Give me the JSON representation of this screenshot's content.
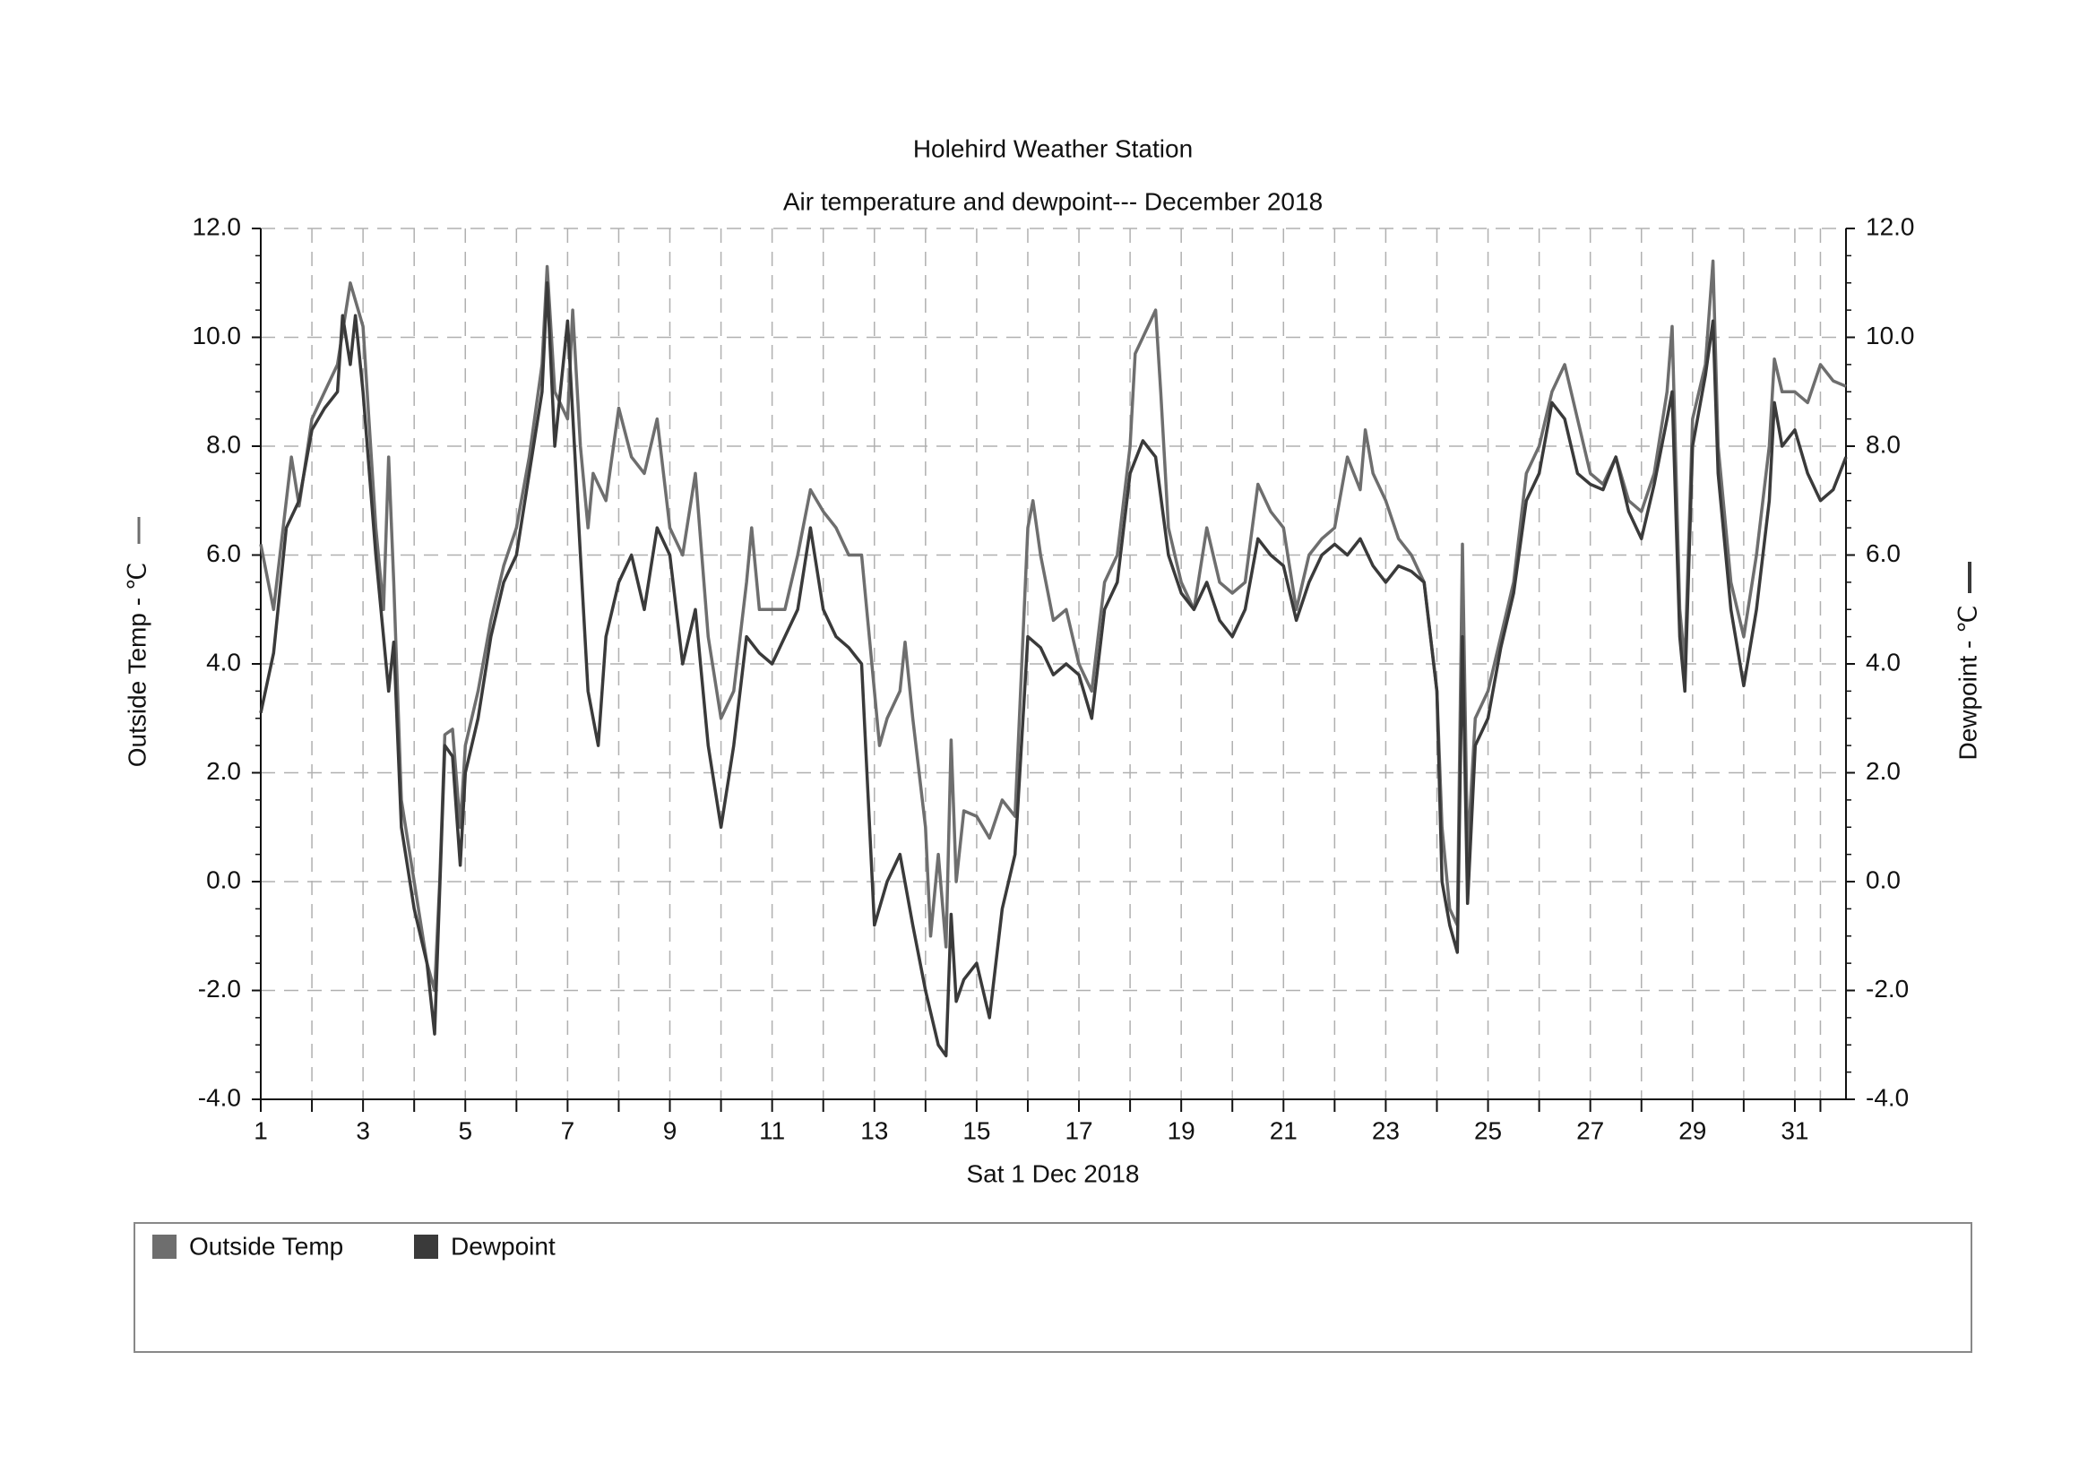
{
  "chart_data": {
    "type": "line",
    "title": "Holehird Weather Station",
    "subtitle": "Air temperature and dewpoint--- December 2018",
    "x_label": "Sat 1 Dec 2018",
    "y_label": "Outside Temp - ℃",
    "y2_label": "Dewpoint - ℃",
    "xlim": [
      1,
      32
    ],
    "xticks": [
      1,
      3,
      5,
      7,
      9,
      11,
      13,
      15,
      17,
      19,
      21,
      23,
      25,
      27,
      29,
      31
    ],
    "ylim": [
      -4,
      12
    ],
    "yticks": [
      {
        "value": -4,
        "label": "-4.0"
      },
      {
        "value": -2,
        "label": "-2.0"
      },
      {
        "value": 0,
        "label": "0.0"
      },
      {
        "value": 2,
        "label": "2.0"
      },
      {
        "value": 4,
        "label": "4.0"
      },
      {
        "value": 6,
        "label": "6.0"
      },
      {
        "value": 8,
        "label": "8.0"
      },
      {
        "value": 10,
        "label": "10.0"
      },
      {
        "value": 12,
        "label": "12.0"
      }
    ],
    "y2lim": [
      -4,
      12
    ],
    "y2ticks": [
      {
        "value": -4,
        "label": "-4.0"
      },
      {
        "value": -2,
        "label": "-2.0"
      },
      {
        "value": 0,
        "label": "0.0"
      },
      {
        "value": 2,
        "label": "2.0"
      },
      {
        "value": 4,
        "label": "4.0"
      },
      {
        "value": 6,
        "label": "6.0"
      },
      {
        "value": 8,
        "label": "8.0"
      },
      {
        "value": 10,
        "label": "10.0"
      },
      {
        "value": 12,
        "label": "12.0"
      }
    ],
    "grid": true,
    "series": [
      {
        "name": "Outside Temp",
        "color": "#6e6e6e",
        "x": [
          1,
          1.25,
          1.5,
          1.6,
          1.75,
          2,
          2.25,
          2.5,
          2.75,
          3,
          3.25,
          3.4,
          3.5,
          3.6,
          3.75,
          4,
          4.25,
          4.4,
          4.5,
          4.6,
          4.75,
          4.9,
          5,
          5.25,
          5.5,
          5.75,
          6,
          6.25,
          6.5,
          6.6,
          6.75,
          7,
          7.1,
          7.25,
          7.4,
          7.5,
          7.75,
          8,
          8.25,
          8.5,
          8.75,
          9,
          9.25,
          9.5,
          9.75,
          10,
          10.25,
          10.5,
          10.6,
          10.75,
          11,
          11.25,
          11.5,
          11.75,
          12,
          12.25,
          12.5,
          12.75,
          13,
          13.1,
          13.25,
          13.5,
          13.6,
          13.75,
          14,
          14.1,
          14.25,
          14.4,
          14.5,
          14.6,
          14.75,
          15,
          15.25,
          15.5,
          15.75,
          16,
          16.1,
          16.25,
          16.5,
          16.75,
          17,
          17.25,
          17.5,
          17.75,
          18,
          18.1,
          18.25,
          18.5,
          18.6,
          18.75,
          19,
          19.25,
          19.5,
          19.75,
          20,
          20.25,
          20.5,
          20.75,
          21,
          21.25,
          21.5,
          21.75,
          22,
          22.25,
          22.5,
          22.6,
          22.75,
          23,
          23.25,
          23.5,
          23.75,
          24,
          24.1,
          24.25,
          24.4,
          24.5,
          24.6,
          24.75,
          25,
          25.25,
          25.5,
          25.75,
          26,
          26.25,
          26.5,
          26.75,
          27,
          27.25,
          27.5,
          27.75,
          28,
          28.25,
          28.5,
          28.6,
          28.75,
          28.85,
          29,
          29.25,
          29.4,
          29.5,
          29.75,
          30,
          30.25,
          30.5,
          30.6,
          30.75,
          31,
          31.25,
          31.5,
          31.75,
          32
        ],
        "values": [
          6.2,
          5.0,
          7.0,
          7.8,
          6.9,
          8.5,
          9.0,
          9.5,
          11.0,
          10.2,
          6.5,
          5.0,
          7.8,
          5.5,
          1.5,
          0.0,
          -1.5,
          -2.0,
          0.0,
          2.7,
          2.8,
          1.0,
          2.5,
          3.5,
          4.8,
          5.8,
          6.5,
          7.8,
          9.5,
          11.3,
          9.0,
          8.5,
          10.5,
          8.0,
          6.5,
          7.5,
          7.0,
          8.7,
          7.8,
          7.5,
          8.5,
          6.5,
          6.0,
          7.5,
          4.5,
          3.0,
          3.5,
          5.5,
          6.5,
          5.0,
          5.0,
          5.0,
          6.0,
          7.2,
          6.8,
          6.5,
          6.0,
          6.0,
          3.5,
          2.5,
          3.0,
          3.5,
          4.4,
          3.0,
          1.0,
          -1.0,
          0.5,
          -1.2,
          2.6,
          0.0,
          1.3,
          1.2,
          0.8,
          1.5,
          1.2,
          6.5,
          7.0,
          6.0,
          4.8,
          5.0,
          4.0,
          3.5,
          5.5,
          6.0,
          8.0,
          9.7,
          10.0,
          10.5,
          9.0,
          6.5,
          5.5,
          5.0,
          6.5,
          5.5,
          5.3,
          5.5,
          7.3,
          6.8,
          6.5,
          5.0,
          6.0,
          6.3,
          6.5,
          7.8,
          7.2,
          8.3,
          7.5,
          7.0,
          6.3,
          6.0,
          5.5,
          3.5,
          1.0,
          -0.5,
          -0.8,
          6.2,
          0.5,
          3.0,
          3.5,
          4.5,
          5.5,
          7.5,
          8.0,
          9.0,
          9.5,
          8.5,
          7.5,
          7.3,
          7.8,
          7.0,
          6.8,
          7.5,
          9.0,
          10.2,
          5.0,
          4.0,
          8.5,
          9.5,
          11.4,
          8.0,
          5.5,
          4.5,
          6.0,
          8.0,
          9.6,
          9.0,
          9.0,
          8.8,
          9.5,
          9.2,
          9.1
        ]
      },
      {
        "name": "Dewpoint",
        "color": "#3a3a3a",
        "axis": "y2",
        "x": [
          1,
          1.25,
          1.5,
          1.75,
          2,
          2.25,
          2.5,
          2.6,
          2.75,
          2.85,
          3,
          3.25,
          3.5,
          3.6,
          3.75,
          4,
          4.25,
          4.4,
          4.6,
          4.75,
          4.9,
          5,
          5.25,
          5.5,
          5.75,
          6,
          6.25,
          6.5,
          6.6,
          6.75,
          7,
          7.25,
          7.4,
          7.6,
          7.75,
          8,
          8.25,
          8.5,
          8.75,
          9,
          9.25,
          9.5,
          9.75,
          10,
          10.25,
          10.5,
          10.75,
          11,
          11.25,
          11.5,
          11.75,
          12,
          12.25,
          12.5,
          12.75,
          13,
          13.25,
          13.5,
          13.75,
          14,
          14.25,
          14.4,
          14.5,
          14.6,
          14.75,
          15,
          15.25,
          15.5,
          15.75,
          16,
          16.25,
          16.5,
          16.75,
          17,
          17.25,
          17.5,
          17.75,
          18,
          18.25,
          18.5,
          18.75,
          19,
          19.25,
          19.5,
          19.75,
          20,
          20.25,
          20.5,
          20.75,
          21,
          21.25,
          21.5,
          21.75,
          22,
          22.25,
          22.5,
          22.75,
          23,
          23.25,
          23.5,
          23.75,
          24,
          24.1,
          24.25,
          24.4,
          24.5,
          24.6,
          24.75,
          25,
          25.25,
          25.5,
          25.75,
          26,
          26.25,
          26.5,
          26.75,
          27,
          27.25,
          27.5,
          27.75,
          28,
          28.25,
          28.5,
          28.6,
          28.75,
          28.85,
          29,
          29.25,
          29.4,
          29.5,
          29.75,
          30,
          30.25,
          30.5,
          30.6,
          30.75,
          31,
          31.25,
          31.5,
          31.75,
          32
        ],
        "values": [
          3.1,
          4.2,
          6.5,
          7.0,
          8.3,
          8.7,
          9.0,
          10.4,
          9.5,
          10.4,
          9.0,
          6.0,
          3.5,
          4.4,
          1.0,
          -0.5,
          -1.5,
          -2.8,
          2.5,
          2.3,
          0.3,
          2.0,
          3.0,
          4.5,
          5.5,
          6.0,
          7.5,
          9.0,
          11.0,
          8.0,
          10.3,
          6.0,
          3.5,
          2.5,
          4.5,
          5.5,
          6.0,
          5.0,
          6.5,
          6.0,
          4.0,
          5.0,
          2.5,
          1.0,
          2.5,
          4.5,
          4.2,
          4.0,
          4.5,
          5.0,
          6.5,
          5.0,
          4.5,
          4.3,
          4.0,
          -0.8,
          0.0,
          0.5,
          -0.8,
          -2.0,
          -3.0,
          -3.2,
          -0.6,
          -2.2,
          -1.8,
          -1.5,
          -2.5,
          -0.5,
          0.5,
          4.5,
          4.3,
          3.8,
          4.0,
          3.8,
          3.0,
          5.0,
          5.5,
          7.5,
          8.1,
          7.8,
          6.0,
          5.3,
          5.0,
          5.5,
          4.8,
          4.5,
          5.0,
          6.3,
          6.0,
          5.8,
          4.8,
          5.5,
          6.0,
          6.2,
          6.0,
          6.3,
          5.8,
          5.5,
          5.8,
          5.7,
          5.5,
          3.5,
          0.0,
          -0.8,
          -1.3,
          4.5,
          -0.4,
          2.5,
          3.0,
          4.3,
          5.3,
          7.0,
          7.5,
          8.8,
          8.5,
          7.5,
          7.3,
          7.2,
          7.8,
          6.8,
          6.3,
          7.3,
          8.5,
          9.0,
          4.5,
          3.5,
          8.0,
          9.3,
          10.3,
          7.5,
          5.0,
          3.6,
          5.0,
          7.0,
          8.8,
          8.0,
          8.3,
          7.5,
          7.0,
          7.2,
          7.8
        ]
      }
    ]
  }
}
